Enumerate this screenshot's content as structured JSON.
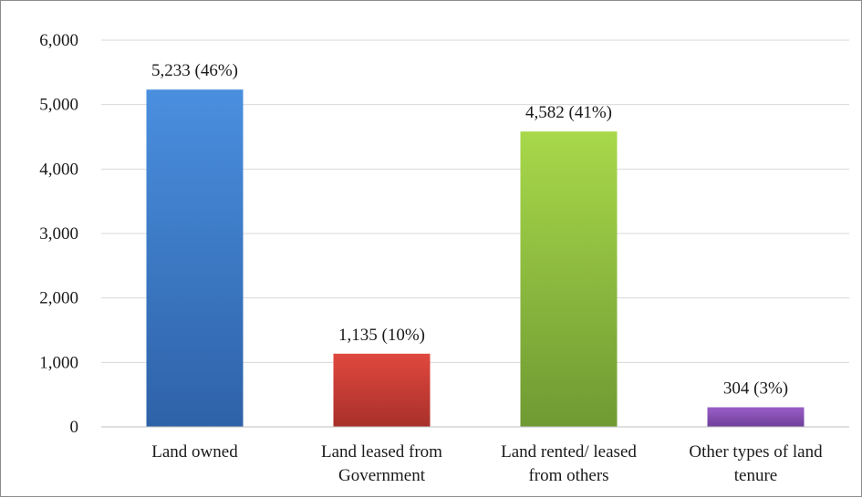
{
  "chart_data": {
    "type": "bar",
    "categories": [
      [
        "Land owned"
      ],
      [
        "Land leased from",
        "Government"
      ],
      [
        "Land rented/ leased",
        "from others"
      ],
      [
        "Other types of land",
        "tenure"
      ]
    ],
    "values": [
      5233,
      1135,
      4582,
      304
    ],
    "data_labels": [
      "5,233  (46%)",
      "1,135  (10%)",
      "4,582  (41%)",
      "304  (3%)"
    ],
    "bar_colors": [
      [
        "#4a8fdf",
        "#2e62a8"
      ],
      [
        "#e0483e",
        "#a8302a"
      ],
      [
        "#a8d84a",
        "#6f9a33"
      ],
      [
        "#9a5fc8",
        "#6e3f9a"
      ]
    ],
    "y_ticks": [
      "0",
      "1,000",
      "2,000",
      "3,000",
      "4,000",
      "5,000",
      "6,000"
    ],
    "ylim": [
      0,
      6000
    ],
    "grid": true,
    "gridline_color": "#d9d9d9",
    "axis_color": "#bfbfbf"
  }
}
